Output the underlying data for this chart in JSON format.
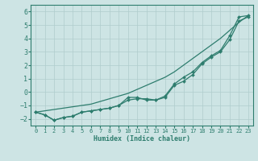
{
  "xlabel": "Humidex (Indice chaleur)",
  "xlim": [
    -0.5,
    23.5
  ],
  "ylim": [
    -2.5,
    6.5
  ],
  "xticks": [
    0,
    1,
    2,
    3,
    4,
    5,
    6,
    7,
    8,
    9,
    10,
    11,
    12,
    13,
    14,
    15,
    16,
    17,
    18,
    19,
    20,
    21,
    22,
    23
  ],
  "yticks": [
    -2,
    -1,
    0,
    1,
    2,
    3,
    4,
    5,
    6
  ],
  "line_color": "#2e7d6e",
  "bg_color": "#cde4e4",
  "grid_color": "#b0cccc",
  "line1_x": [
    0,
    1,
    2,
    3,
    4,
    5,
    6,
    7,
    8,
    9,
    10,
    11,
    12,
    13,
    14,
    15,
    16,
    17,
    18,
    19,
    20,
    21,
    22,
    23
  ],
  "line1_y": [
    -1.5,
    -1.7,
    -2.1,
    -1.9,
    -1.8,
    -1.5,
    -1.4,
    -1.3,
    -1.2,
    -1.0,
    -0.6,
    -0.5,
    -0.5,
    -0.6,
    -0.4,
    0.5,
    0.8,
    1.3,
    2.1,
    2.6,
    3.0,
    3.9,
    5.3,
    5.6
  ],
  "line2_x": [
    0,
    1,
    2,
    3,
    4,
    5,
    6,
    7,
    8,
    9,
    10,
    11,
    12,
    13,
    14,
    15,
    16,
    17,
    18,
    19,
    20,
    21,
    22,
    23
  ],
  "line2_y": [
    -1.5,
    -1.7,
    -2.1,
    -1.9,
    -1.8,
    -1.5,
    -1.4,
    -1.3,
    -1.2,
    -1.0,
    -0.4,
    -0.4,
    -0.6,
    -0.6,
    -0.3,
    0.6,
    1.1,
    1.5,
    2.2,
    2.7,
    3.1,
    4.2,
    5.6,
    5.7
  ],
  "line3_x": [
    0,
    1,
    2,
    3,
    4,
    5,
    6,
    7,
    8,
    9,
    10,
    11,
    12,
    13,
    14,
    15,
    16,
    17,
    18,
    19,
    20,
    21,
    22,
    23
  ],
  "line3_y": [
    -1.5,
    -1.4,
    -1.3,
    -1.2,
    -1.1,
    -1.0,
    -0.9,
    -0.7,
    -0.5,
    -0.3,
    -0.1,
    0.2,
    0.5,
    0.8,
    1.1,
    1.5,
    2.0,
    2.5,
    3.0,
    3.5,
    4.0,
    4.6,
    5.2,
    5.7
  ]
}
